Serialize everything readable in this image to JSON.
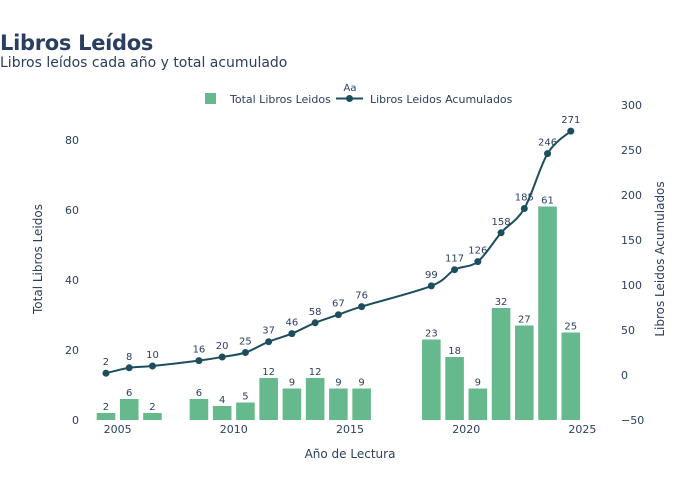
{
  "chart_data": {
    "type": "bar",
    "title": "Libros Leídos",
    "subtitle": "Libros leídos cada año y total acumulado",
    "legend_title": "Aa",
    "legend_position": "top-center",
    "xlabel": "Año de Lectura",
    "ylabel": "Total Libros Leidos",
    "y2label": "Libros Leidos Acumulados",
    "xlim": [
      2004.2,
      2025.8
    ],
    "ylim": [
      0,
      90
    ],
    "y2lim": [
      -50,
      300
    ],
    "x_ticks": [
      2005,
      2010,
      2015,
      2020,
      2025
    ],
    "y_ticks": [
      0,
      20,
      40,
      60,
      80
    ],
    "y2_ticks": [
      -50,
      0,
      50,
      100,
      150,
      200,
      250,
      300
    ],
    "grid": false,
    "series": [
      {
        "name": "Total Libros Leidos",
        "type": "bar",
        "axis": "y",
        "color": "#66b98c",
        "x": [
          2004,
          2005,
          2006,
          2008,
          2009,
          2010,
          2011,
          2012,
          2013,
          2014,
          2015,
          2018,
          2019,
          2020,
          2021,
          2022,
          2023,
          2024
        ],
        "values": [
          2,
          6,
          2,
          6,
          4,
          5,
          12,
          9,
          12,
          9,
          9,
          23,
          18,
          9,
          32,
          27,
          61,
          25
        ]
      },
      {
        "name": "Libros Leidos Acumulados",
        "type": "line",
        "axis": "y2",
        "color": "#1d4e5e",
        "x": [
          2004,
          2005,
          2006,
          2008,
          2009,
          2010,
          2011,
          2012,
          2013,
          2014,
          2015,
          2018,
          2019,
          2020,
          2021,
          2022,
          2023,
          2024
        ],
        "values": [
          2,
          8,
          10,
          16,
          20,
          25,
          37,
          46,
          58,
          67,
          76,
          99,
          117,
          126,
          158,
          185,
          246,
          271
        ]
      }
    ]
  }
}
